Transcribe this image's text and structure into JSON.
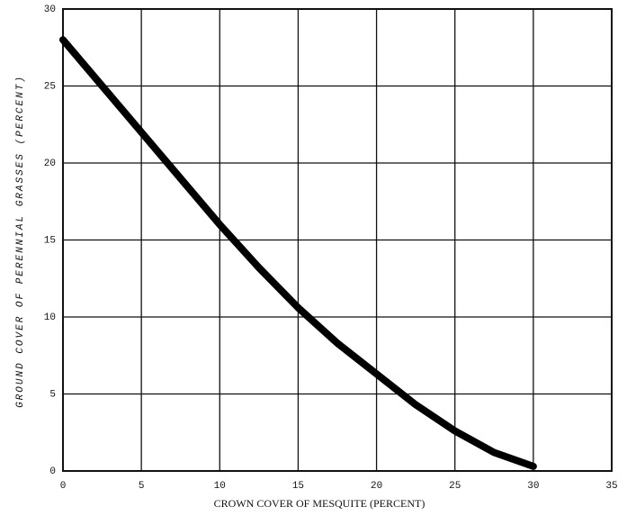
{
  "chart_data": {
    "type": "line",
    "xlabel": "CROWN COVER OF MESQUITE (PERCENT)",
    "ylabel": "GROUND COVER OF PERENNIAL GRASSES (PERCENT)",
    "x": [
      0,
      2.5,
      5,
      7.5,
      10,
      12.5,
      15,
      17.5,
      20,
      22.5,
      25,
      27.5,
      30
    ],
    "values": [
      28,
      25,
      22,
      19,
      16,
      13.2,
      10.6,
      8.3,
      6.3,
      4.3,
      2.6,
      1.2,
      0.3
    ],
    "color": "#000000",
    "xlim": [
      0,
      35
    ],
    "xticks": [
      0,
      5,
      10,
      15,
      20,
      25,
      30,
      35
    ],
    "ylim": [
      0,
      30
    ],
    "yticks": [
      0,
      5,
      10,
      15,
      20,
      25,
      30
    ],
    "grid": true
  }
}
